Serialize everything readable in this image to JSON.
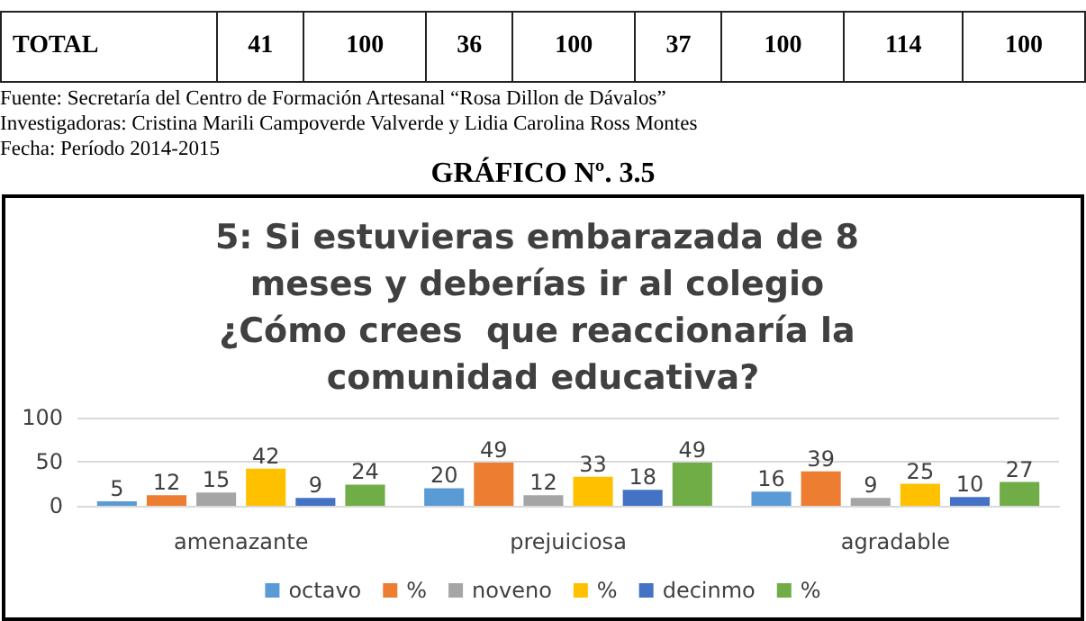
{
  "chart_data": {
    "type": "bar",
    "title": "5: Si estuvieras embarazada de 8 meses y deberías ir al colegio ¿Cómo crees  que reaccionaría la comunidad educativa?",
    "annotations": [
      "TOTAL 41 100 36 100 37 100 114 100",
      "Fuente: Secretaría del  Centro de Formación Artesanal “Rosa Dillon de Dávalos”",
      "Investigadoras: Cristina Marili Campoverde Valverde y Lidia Carolina Ross Montes",
      "Fecha: Período 2014-2015",
      "GRÁFICO Nº. 3.5"
    ],
    "categories": [
      "amenazante",
      "prejuiciosa",
      "agradable"
    ],
    "series": [
      {
        "name": "octavo",
        "color": "#5b9bd5",
        "values": [
          5,
          20,
          16
        ]
      },
      {
        "name": "%",
        "color": "#ed7d31",
        "values": [
          12,
          49,
          39
        ]
      },
      {
        "name": "noveno",
        "color": "#a5a5a5",
        "values": [
          15,
          12,
          9
        ]
      },
      {
        "name": "%",
        "color": "#ffc000",
        "values": [
          42,
          33,
          25
        ]
      },
      {
        "name": "decinmo",
        "color": "#4472c4",
        "values": [
          9,
          18,
          10
        ]
      },
      {
        "name": "%",
        "color": "#70ad47",
        "values": [
          24,
          49,
          27
        ]
      }
    ],
    "ylim": [
      0,
      100
    ],
    "yticks": [
      0,
      50,
      100
    ],
    "grid": "y",
    "legend": "bottom",
    "data_labels": true
  }
}
